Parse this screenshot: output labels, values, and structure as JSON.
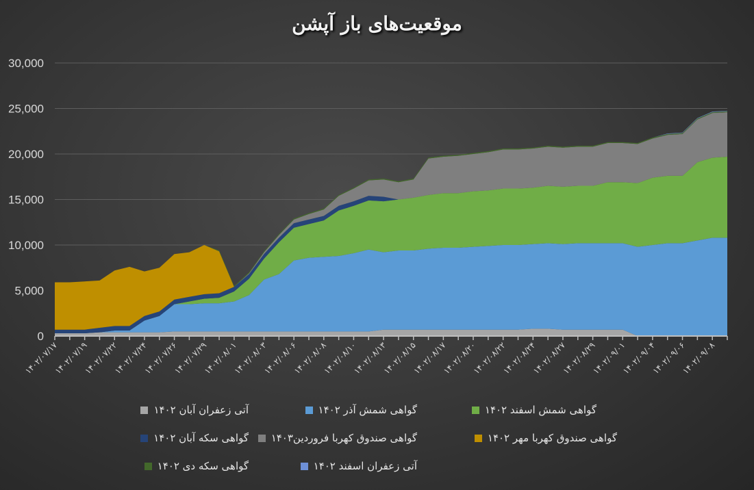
{
  "chart_data": {
    "type": "area",
    "stacked": true,
    "title": "موقعیت‌های باز آپشن",
    "xlabel": "",
    "ylabel": "",
    "ylim": [
      0,
      30000
    ],
    "yticks": [
      "0",
      "5,000",
      "10,000",
      "15,000",
      "20,000",
      "25,000",
      "30,000"
    ],
    "grid": true,
    "legend_position": "bottom",
    "x_labels": [
      "۱۴۰۲/۰۷/۱۷",
      "۱۴۰۲/۰۷/۱۹",
      "۱۴۰۲/۰۷/۲۲",
      "۱۴۰۲/۰۷/۲۴",
      "۱۴۰۲/۰۷/۲۶",
      "۱۴۰۲/۰۷/۲۹",
      "۱۴۰۲/۰۸/۰۱",
      "۱۴۰۲/۰۸/۰۳",
      "۱۴۰۲/۰۸/۰۶",
      "۱۴۰۲/۰۸/۰۸",
      "۱۴۰۲/۰۸/۱۰",
      "۱۴۰۲/۰۸/۱۳",
      "۱۴۰۲/۰۸/۱۵",
      "۱۴۰۲/۰۸/۱۷",
      "۱۴۰۲/۰۸/۲۰",
      "۱۴۰۲/۰۸/۲۲",
      "۱۴۰۲/۰۸/۲۴",
      "۱۴۰۲/۰۸/۲۷",
      "۱۴۰۲/۰۸/۲۹",
      "۱۴۰۲/۰۹/۰۱",
      "۱۴۰۲/۰۹/۰۴",
      "۱۴۰۲/۰۹/۰۶",
      "۱۴۰۲/۰۹/۰۸"
    ],
    "point_count": 46,
    "series": [
      {
        "name": "آتی زعفران آبان ۱۴۰۲",
        "color": "#a6a6a6",
        "values": [
          300,
          300,
          300,
          400,
          400,
          400,
          400,
          400,
          500,
          500,
          500,
          500,
          500,
          500,
          500,
          500,
          500,
          500,
          500,
          500,
          500,
          500,
          700,
          700,
          700,
          700,
          700,
          700,
          700,
          700,
          700,
          700,
          800,
          800,
          700,
          700,
          700,
          700,
          700,
          0,
          0,
          0,
          0,
          0,
          0,
          0
        ]
      },
      {
        "name": "گواهی شمش آذر ۱۴۰۲",
        "color": "#5b9bd5",
        "values": [
          0,
          0,
          0,
          0,
          200,
          200,
          1300,
          1800,
          3000,
          3000,
          3100,
          3100,
          3300,
          4000,
          5700,
          6300,
          7800,
          8100,
          8200,
          8300,
          8600,
          9000,
          8500,
          8700,
          8700,
          8900,
          9000,
          9000,
          9100,
          9200,
          9300,
          9300,
          9300,
          9400,
          9400,
          9500,
          9500,
          9500,
          9500,
          9800,
          10000,
          10200,
          10200,
          10500,
          10800,
          10800
        ]
      },
      {
        "name": "گواهی شمش اسفند ۱۴۰۲",
        "color": "#70ad47",
        "values": [
          0,
          0,
          0,
          0,
          0,
          0,
          0,
          0,
          0,
          300,
          500,
          600,
          1100,
          1800,
          2300,
          3500,
          3600,
          3700,
          4000,
          5000,
          5200,
          5400,
          5600,
          5600,
          5800,
          5900,
          6000,
          6000,
          6100,
          6100,
          6200,
          6200,
          6200,
          6300,
          6300,
          6300,
          6300,
          6700,
          6700,
          7000,
          7400,
          7400,
          7400,
          8600,
          8800,
          8900
        ]
      },
      {
        "name": "گواهی سکه آبان ۱۴۰۲",
        "color": "#264478",
        "values": [
          400,
          400,
          400,
          500,
          500,
          500,
          500,
          500,
          500,
          500,
          500,
          500,
          500,
          500,
          500,
          500,
          500,
          500,
          500,
          500,
          500,
          500,
          500,
          0,
          0,
          0,
          0,
          0,
          0,
          0,
          0,
          0,
          0,
          0,
          0,
          0,
          0,
          0,
          0,
          0,
          0,
          0,
          0,
          0,
          0,
          0
        ]
      },
      {
        "name": "گواهی صندوق کهربا فروردین ۱۴۰۳",
        "color": "#7f7f7f",
        "values": [
          0,
          0,
          0,
          0,
          0,
          0,
          0,
          0,
          0,
          0,
          0,
          0,
          0,
          100,
          200,
          300,
          400,
          600,
          700,
          1100,
          1400,
          1700,
          1900,
          1900,
          2000,
          4000,
          4000,
          4100,
          4100,
          4200,
          4300,
          4300,
          4300,
          4300,
          4300,
          4300,
          4300,
          4300,
          4300,
          4300,
          4300,
          4500,
          4600,
          4700,
          4900,
          4900
        ]
      },
      {
        "name": "گواهی صندوق کهربا مهر ۱۴۰۲",
        "color": "#bf8f00",
        "values": [
          5200,
          5200,
          5300,
          5200,
          6100,
          6500,
          4900,
          4800,
          5000,
          4900,
          5400,
          4600,
          0,
          0,
          0,
          0,
          0,
          0,
          0,
          0,
          0,
          0,
          0,
          0,
          0,
          0,
          0,
          0,
          0,
          0,
          0,
          0,
          0,
          0,
          0,
          0,
          0,
          0,
          0,
          0,
          0,
          0,
          0,
          0,
          0,
          0
        ]
      },
      {
        "name": "گواهی سکه دی ۱۴۰۲",
        "color": "#43682b",
        "values": [
          0,
          0,
          0,
          0,
          0,
          0,
          0,
          0,
          0,
          0,
          0,
          100,
          100,
          100,
          100,
          100,
          100,
          100,
          100,
          100,
          100,
          100,
          100,
          100,
          100,
          100,
          100,
          100,
          100,
          100,
          100,
          100,
          100,
          100,
          100,
          100,
          100,
          100,
          100,
          100,
          100,
          100,
          100,
          100,
          100,
          100
        ]
      },
      {
        "name": "آتی زعفران اسفند ۱۴۰۲",
        "color": "#6d8fd6",
        "values": [
          0,
          0,
          0,
          0,
          0,
          0,
          0,
          0,
          0,
          0,
          0,
          0,
          0,
          0,
          0,
          0,
          0,
          0,
          0,
          0,
          0,
          0,
          0,
          0,
          0,
          0,
          0,
          0,
          0,
          0,
          0,
          0,
          0,
          0,
          0,
          0,
          0,
          0,
          0,
          0,
          0,
          50,
          50,
          50,
          50,
          50
        ]
      }
    ]
  },
  "legend": {
    "items": [
      {
        "label": "آتی زعفران آبان ۱۴۰۲",
        "color": "#a6a6a6"
      },
      {
        "label": "گواهی شمش آذر ۱۴۰۲",
        "color": "#5b9bd5"
      },
      {
        "label": "گواهی شمش اسفند ۱۴۰۲",
        "color": "#70ad47"
      },
      {
        "label": "گواهی سکه آبان ۱۴۰۲",
        "color": "#264478"
      },
      {
        "label": "گواهی صندوق کهربا فروردین۱۴۰۳",
        "color": "#7f7f7f"
      },
      {
        "label": "گواهی صندوق کهربا مهر ۱۴۰۲",
        "color": "#bf8f00"
      },
      {
        "label": "گواهی سکه دی ۱۴۰۲",
        "color": "#43682b"
      },
      {
        "label": "آتی زعفران اسفند ۱۴۰۲",
        "color": "#6d8fd6"
      }
    ]
  }
}
